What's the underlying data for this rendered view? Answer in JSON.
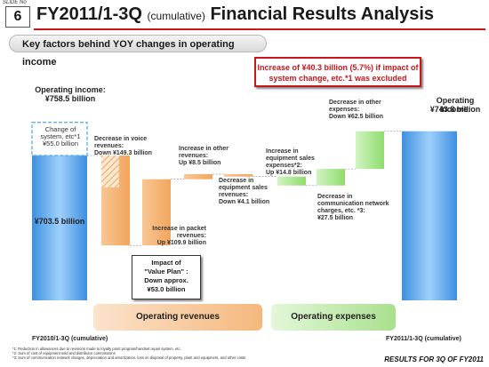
{
  "slide": {
    "slide_no_label": "SLIDE No",
    "number": "6"
  },
  "title": {
    "main_a": "FY2011/1-3Q",
    "cumulative": "(cumulative)",
    "main_b": "Financial Results Analysis"
  },
  "subtitle": "Key factors behind YOY changes in operating income",
  "callout": {
    "line1": "Increase of ¥40.3 billion (5.7%) if impact of",
    "line2": "system change, etc.*1 was excluded"
  },
  "colors": {
    "accent": "#c8161d",
    "start_bar": "#62aff0",
    "revenue_step": "#f6b779",
    "expense_step": "#a8e68c"
  },
  "chart_data": {
    "type": "bar",
    "subtype": "waterfall",
    "unit": "¥ billion",
    "start": {
      "period": "FY2010/1-3Q (cumulative)",
      "label": "Operating income:",
      "value_label": "¥758.5 billion",
      "value": 758.5,
      "adjusted_label": "¥703.5 billion",
      "adjusted_value": 703.5,
      "system_change_label": "Change of system, etc*1 ¥55.0 billion",
      "system_change_value": 55.0
    },
    "steps": [
      {
        "group": "revenue",
        "label_lines": [
          "Decrease in voice",
          "revenues:",
          "Down ¥149.3 billion"
        ],
        "value": -149.3
      },
      {
        "group": "revenue",
        "label_lines": [
          "Increase in packet",
          "revenues:",
          "Up ¥109.9 billion"
        ],
        "value": 109.9
      },
      {
        "group": "revenue",
        "label_lines": [
          "Increase in other",
          "revenues:",
          "Up ¥8.5 billion"
        ],
        "value": 8.5
      },
      {
        "group": "revenue",
        "label_lines": [
          "Decrease in",
          "equipment sales",
          "revenues:",
          "Down ¥4.1 billion"
        ],
        "value": -4.1
      },
      {
        "group": "expense",
        "label_lines": [
          "Increase in",
          "equipment sales",
          "expenses*2:",
          "Up ¥14.8 billion"
        ],
        "value": -14.8
      },
      {
        "group": "expense",
        "label_lines": [
          "Decrease in",
          "communication network",
          "charges, etc. *3:",
          "¥27.5 billion"
        ],
        "value": 27.5
      },
      {
        "group": "expense",
        "label_lines": [
          "Decrease in other",
          "expenses:",
          "Down ¥62.5 billion"
        ],
        "value": 62.5
      }
    ],
    "end": {
      "period": "FY2011/1-3Q (cumulative)",
      "label": "Operating income:",
      "value_label": "¥743.8 billion",
      "value": 743.8
    },
    "impact_box": [
      "Impact of",
      "\"Value Plan\" :",
      "Down approx.",
      "¥53.0 billion"
    ],
    "impact_value": -53.0,
    "groups": {
      "revenue": "Operating revenues",
      "expense": "Operating expenses"
    }
  },
  "footnotes": [
    "*1: Reduction in allowances due to revisions made to loyalty point program/handset repair system, etc.",
    "*2: Sum of cost of equipment sold and distributor commissions",
    "*3: Sum of communication network charges, depreciation and amortization, loss on disposal of property, plant and equipment, and other costs"
  ],
  "footer": "RESULTS FOR 3Q OF FY2011"
}
